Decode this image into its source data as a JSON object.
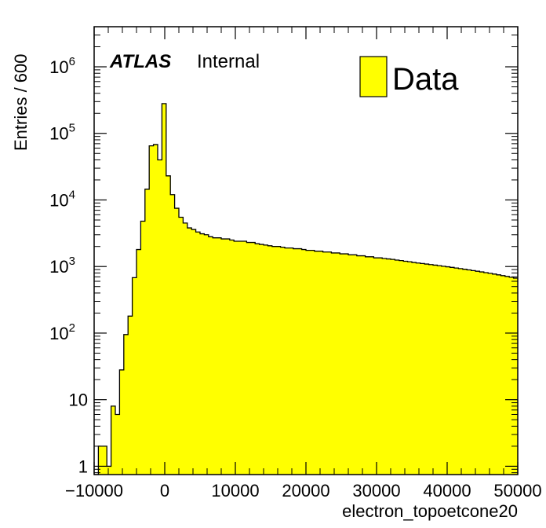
{
  "chart_data": {
    "type": "bar",
    "histogram": true,
    "xlabel": "electron_topoetcone20",
    "ylabel": "Entries / 600",
    "xlim": [
      -10000,
      50000
    ],
    "ylim": [
      0.75,
      4000000
    ],
    "yscale": "log",
    "bin_width": 600,
    "x_start": -10000,
    "x_ticks": [
      "−10000",
      "0",
      "10000",
      "20000",
      "30000",
      "40000",
      "50000"
    ],
    "x_tick_values": [
      -10000,
      0,
      10000,
      20000,
      30000,
      40000,
      50000
    ],
    "y_ticks": [
      {
        "value": 1,
        "base": "1",
        "exp": ""
      },
      {
        "value": 10,
        "base": "10",
        "exp": ""
      },
      {
        "value": 100,
        "base": "10",
        "exp": "2"
      },
      {
        "value": 1000,
        "base": "10",
        "exp": "3"
      },
      {
        "value": 10000,
        "base": "10",
        "exp": "4"
      },
      {
        "value": 100000,
        "base": "10",
        "exp": "5"
      },
      {
        "value": 1000000,
        "base": "10",
        "exp": "6"
      }
    ],
    "series": [
      {
        "name": "Data",
        "color": "#ffff00",
        "values": [
          0,
          2,
          2,
          1,
          8,
          6,
          28,
          95,
          180,
          680,
          1800,
          4800,
          14500,
          65000,
          68000,
          40000,
          280000,
          23000,
          12000,
          7500,
          5500,
          4500,
          3800,
          3600,
          3300,
          3100,
          3000,
          2800,
          2700,
          2700,
          2600,
          2600,
          2500,
          2400,
          2400,
          2400,
          2300,
          2300,
          2200,
          2150,
          2100,
          2050,
          2000,
          2000,
          1950,
          1900,
          1900,
          1850,
          1850,
          1800,
          1750,
          1750,
          1700,
          1700,
          1650,
          1650,
          1600,
          1600,
          1550,
          1550,
          1500,
          1500,
          1450,
          1450,
          1400,
          1400,
          1350,
          1350,
          1320,
          1300,
          1280,
          1250,
          1230,
          1200,
          1180,
          1150,
          1130,
          1110,
          1090,
          1070,
          1050,
          1030,
          1010,
          990,
          970,
          950,
          930,
          910,
          890,
          870,
          850,
          830,
          810,
          790,
          770,
          750,
          730,
          710,
          690,
          670
        ]
      }
    ],
    "legend": {
      "entries": [
        "Data"
      ],
      "placement": "top-right"
    }
  },
  "labels": {
    "atlas": "ATLAS",
    "internal": "Internal",
    "xlabel": "electron_topoetcone20",
    "ylabel": "Entries / 600",
    "legend_data": "Data"
  },
  "colors": {
    "fill": "#ffff00",
    "line": "#000000",
    "background": "#ffffff"
  }
}
